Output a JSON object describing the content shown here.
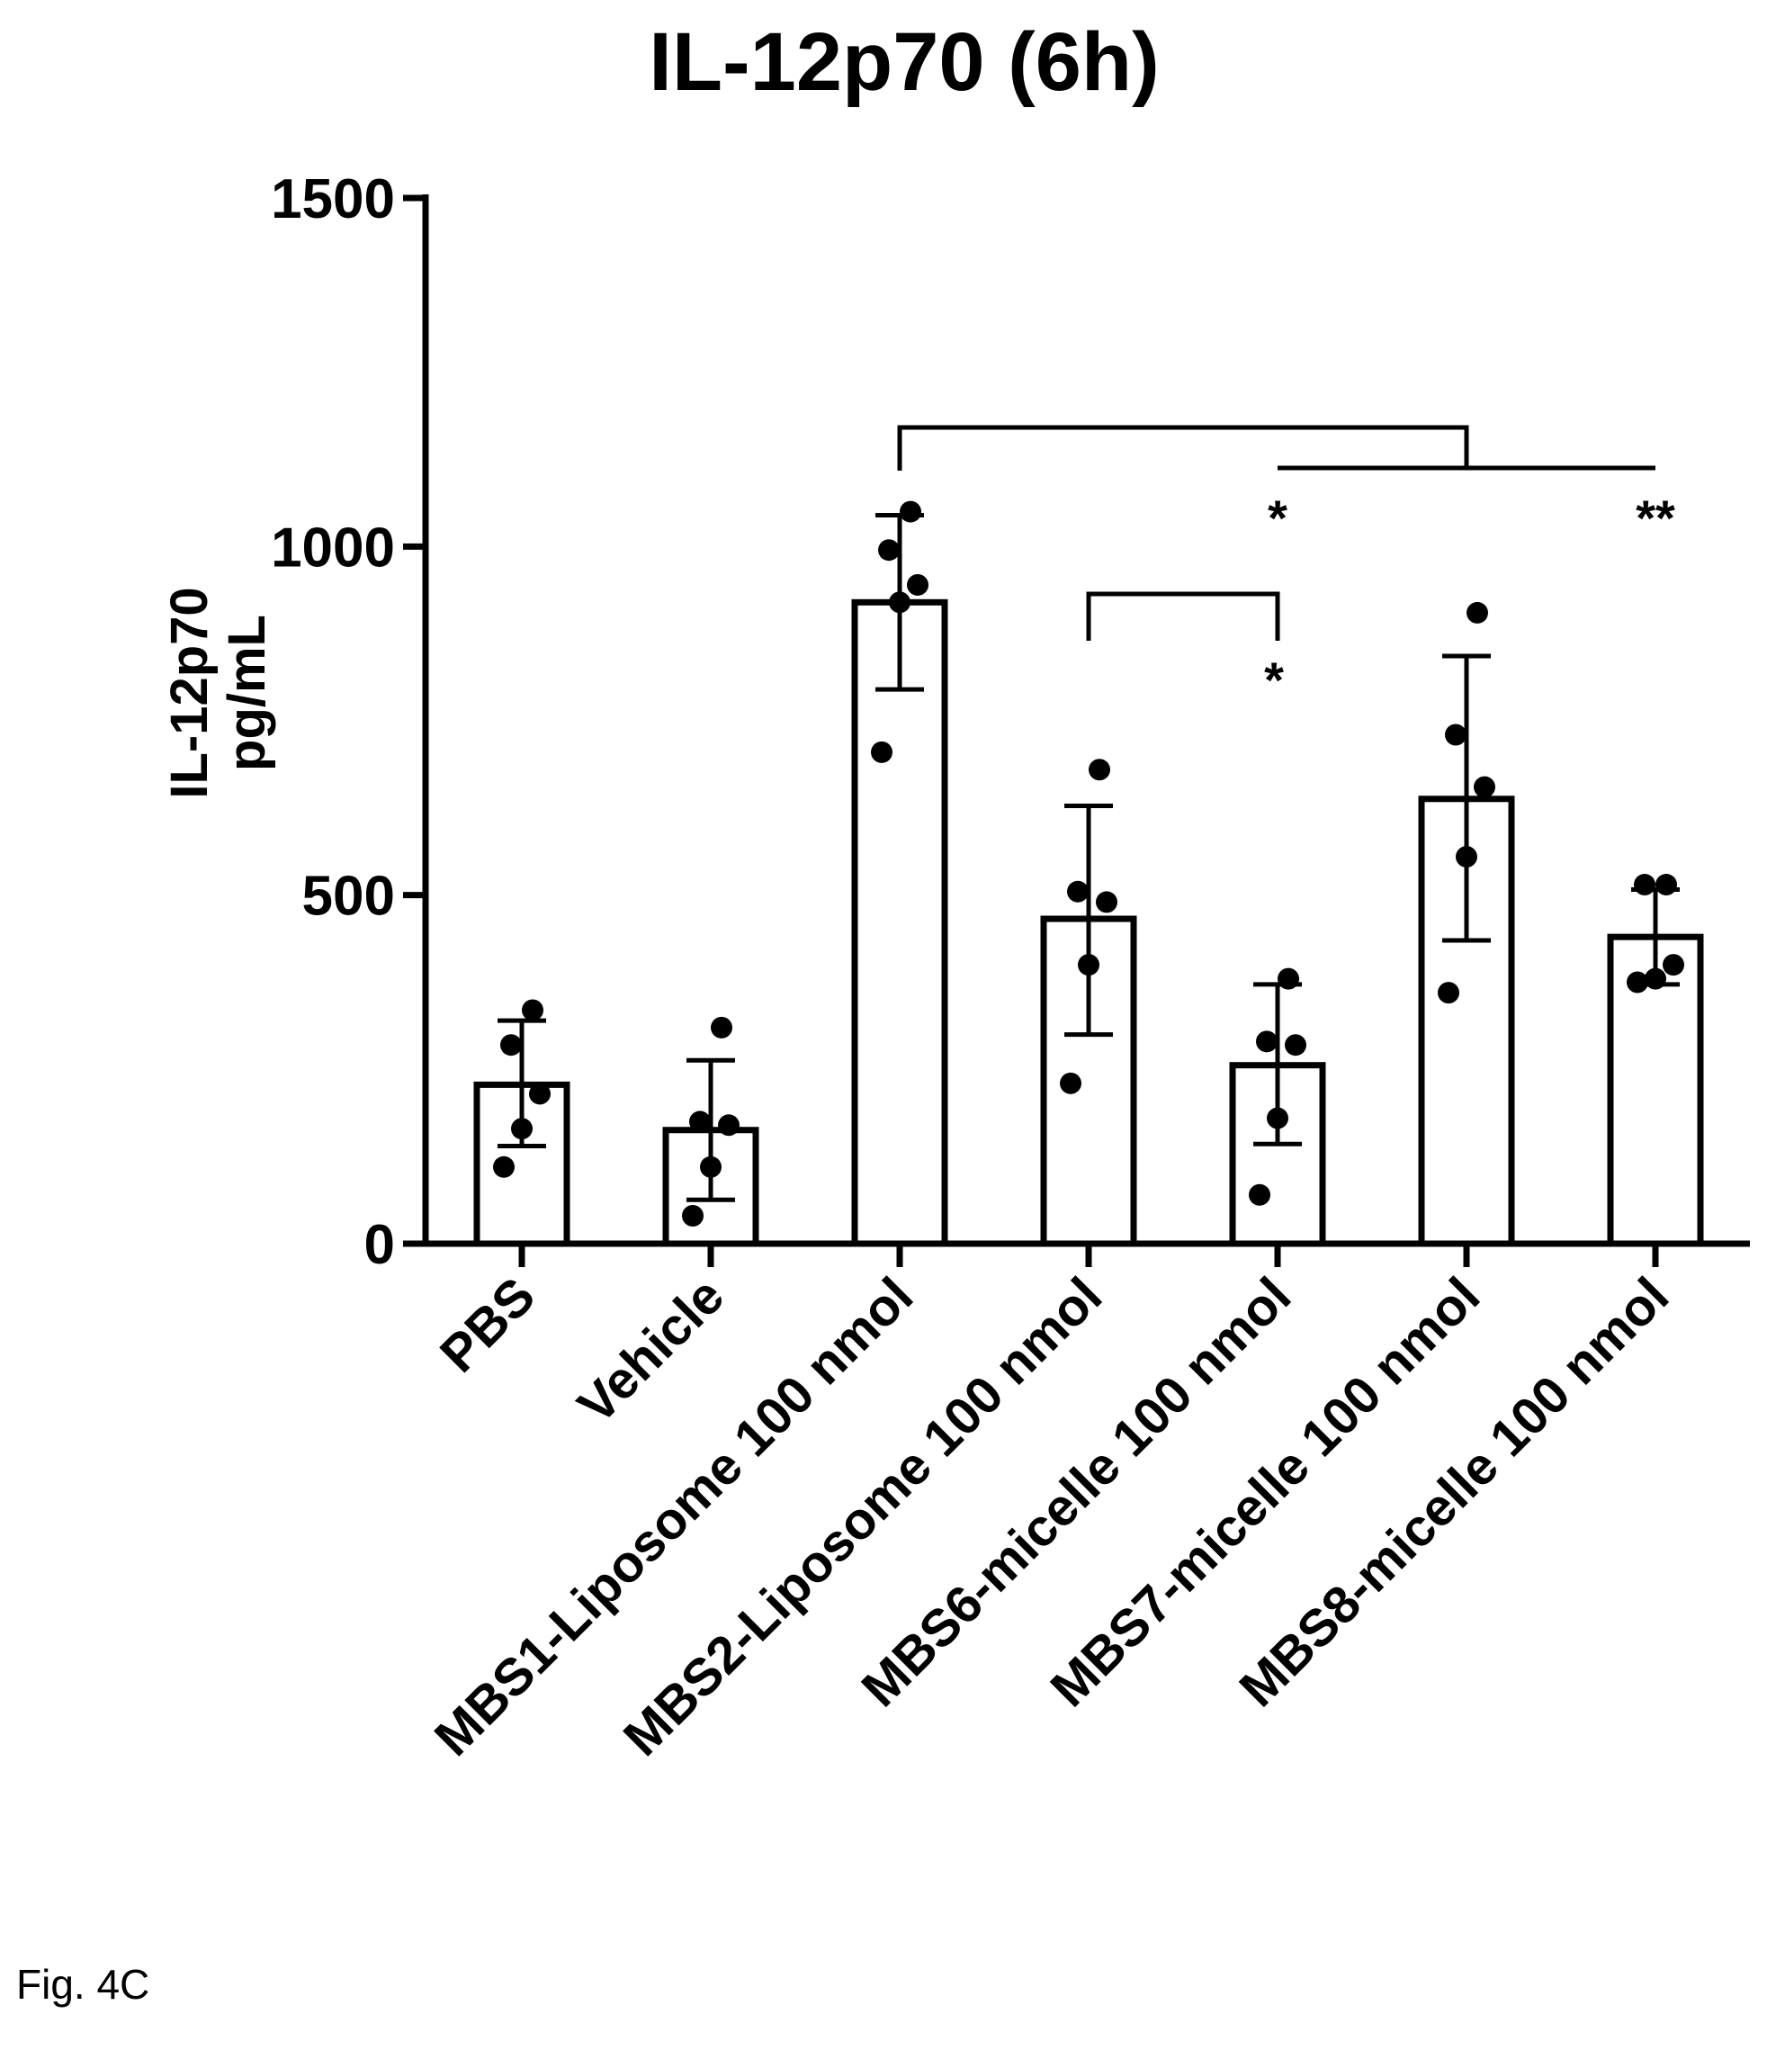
{
  "chart_data": {
    "type": "bar",
    "title": "IL-12p70 (6h)",
    "ylabel": [
      "IL-12p70",
      "pg/mL"
    ],
    "xlabel": "",
    "ylim": [
      0,
      1500
    ],
    "yticks": [
      0,
      500,
      1000,
      1500
    ],
    "categories": [
      "PBS",
      "Vehicle",
      "MBS1-Liposome 100 nmol",
      "MBS2-Liposome 100 nmol",
      "MBS6-micelle 100 nmol",
      "MBS7-micelle 100 nmol",
      "MBS8-micelle 100 nmol"
    ],
    "values": [
      228,
      163,
      920,
      466,
      256,
      638,
      440
    ],
    "error": [
      [
        140,
        320
      ],
      [
        63,
        263
      ],
      [
        795,
        1045
      ],
      [
        300,
        628
      ],
      [
        143,
        372
      ],
      [
        435,
        843
      ],
      [
        372,
        508
      ]
    ],
    "points": [
      [
        110,
        165,
        215,
        285,
        335
      ],
      [
        40,
        110,
        170,
        175,
        310
      ],
      [
        705,
        920,
        945,
        995,
        1050
      ],
      [
        230,
        400,
        490,
        505,
        680
      ],
      [
        70,
        180,
        285,
        290,
        380
      ],
      [
        360,
        555,
        655,
        730,
        905
      ],
      [
        375,
        380,
        400,
        515,
        515
      ]
    ],
    "brackets": [
      {
        "from": 2,
        "to_span": [
          4,
          6
        ],
        "label": [
          "*",
          "**"
        ]
      },
      {
        "from": 3,
        "to": 4,
        "label": "*"
      }
    ],
    "grid": false,
    "legend": "none"
  },
  "caption": "Fig. 4C"
}
